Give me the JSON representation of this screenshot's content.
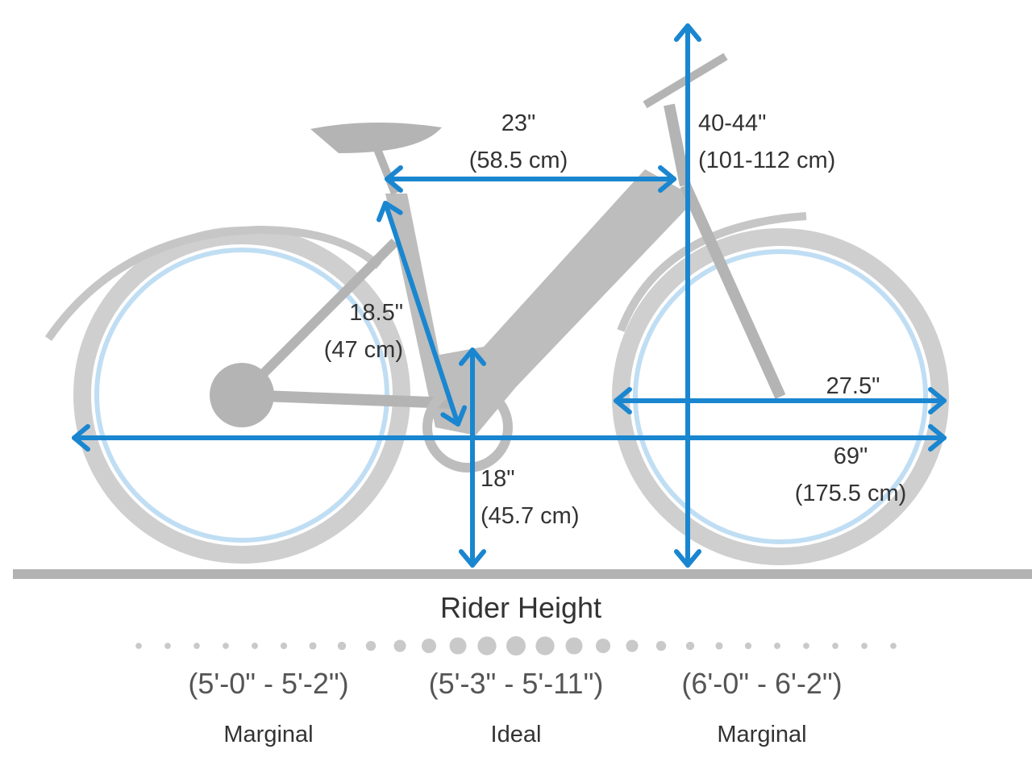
{
  "dimensions": [
    {
      "lines": [
        "23\"",
        "(58.5 cm)"
      ]
    },
    {
      "lines": [
        "40-44\"",
        "(101-112 cm)"
      ]
    },
    {
      "lines": [
        "18.5\"",
        "(47 cm)"
      ]
    },
    {
      "lines": [
        "27.5\""
      ]
    },
    {
      "lines": [
        "69\"",
        "(175.5 cm)"
      ]
    },
    {
      "lines": [
        "18\"",
        "(45.7 cm)"
      ]
    }
  ],
  "rider_height": {
    "title": "Rider Height",
    "ranges": [
      {
        "range": "(5'-0\" - 5'-2\")",
        "fit": "Marginal"
      },
      {
        "range": "(5'-3\" - 5'-11\")",
        "fit": "Ideal"
      },
      {
        "range": "(6'-0\" - 6'-2\")",
        "fit": "Marginal"
      }
    ]
  }
}
